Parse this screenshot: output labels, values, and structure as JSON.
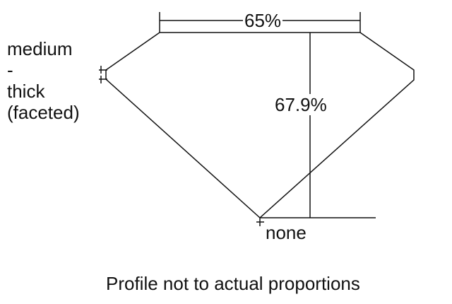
{
  "labels": {
    "table_percent": "65%",
    "depth_percent": "67.9%",
    "girdle": [
      "medium",
      "-",
      "thick",
      "(faceted)"
    ],
    "culet": "none",
    "caption": "Profile not to actual proportions"
  },
  "colors": {
    "line": "#111111",
    "background": "#ffffff"
  }
}
